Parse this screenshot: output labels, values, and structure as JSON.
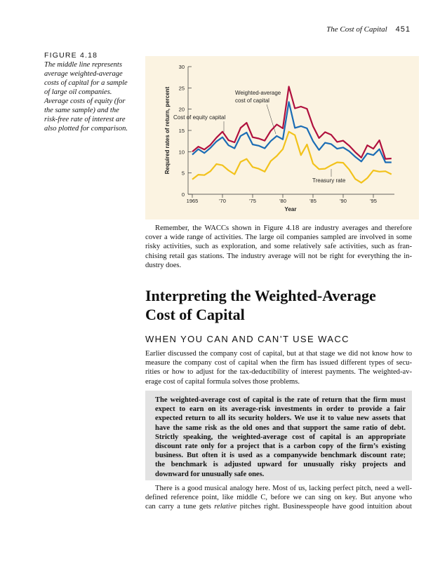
{
  "running_head": {
    "title": "The Cost of Capital",
    "page": "451"
  },
  "caption": {
    "label": "FIGURE 4.18",
    "lines": [
      "The middle line represents",
      "average weighted-average",
      "costs of capital for a sample",
      "of large oil companies.",
      "Average costs of equity (for",
      "the same sample) and the",
      "risk-free rate of interest are",
      "also plotted for comparison."
    ]
  },
  "chart_data": {
    "type": "line",
    "xlabel": "Year",
    "ylabel": "Required rates of return, percent",
    "x": [
      1965,
      1966,
      1967,
      1968,
      1969,
      1970,
      1971,
      1972,
      1973,
      1974,
      1975,
      1976,
      1977,
      1978,
      1979,
      1980,
      1981,
      1982,
      1983,
      1984,
      1985,
      1986,
      1987,
      1988,
      1989,
      1990,
      1991,
      1992,
      1993,
      1994,
      1995,
      1996,
      1997,
      1998
    ],
    "xticks": [
      1965,
      1970,
      1975,
      1980,
      1985,
      1990,
      1995
    ],
    "xtick_labels": [
      "1965",
      "'70",
      "'75",
      "'80",
      "'85",
      "'90",
      "'95"
    ],
    "ylim": [
      0,
      30
    ],
    "yticks": [
      "0",
      "5",
      "10",
      "15",
      "20",
      "25",
      "30"
    ],
    "grid": false,
    "series": [
      {
        "name": "Cost of equity capital",
        "color": "#b0103e",
        "values": [
          10,
          11.2,
          10.5,
          11.6,
          13.3,
          14.7,
          12.7,
          12.2,
          15.6,
          16.8,
          13.4,
          13.1,
          12.6,
          14.9,
          16.4,
          15.5,
          25.3,
          20.2,
          20.6,
          20.1,
          16,
          13.2,
          14.6,
          14,
          12.3,
          12.6,
          11.4,
          9.9,
          8.6,
          11.5,
          10.7,
          12.7,
          8.3,
          8.4
        ]
      },
      {
        "name": "Weighted-average cost of capital",
        "color": "#1b6db5",
        "values": [
          9.3,
          10.6,
          9.7,
          10.9,
          12.4,
          13.4,
          11.5,
          10.8,
          13.7,
          14.5,
          11.7,
          11.4,
          10.8,
          12.5,
          13.7,
          12.9,
          21.7,
          15.6,
          16,
          15.5,
          12.5,
          10.4,
          12.1,
          11.8,
          10.7,
          11,
          10.1,
          8.8,
          7.7,
          9.6,
          9.2,
          10.6,
          7.5,
          7.5
        ]
      },
      {
        "name": "Treasury rate",
        "color": "#f2c21b",
        "values": [
          3.5,
          4.6,
          4.5,
          5.4,
          7.1,
          6.8,
          5.6,
          4.7,
          7.6,
          8.3,
          6.4,
          6,
          5.3,
          7.8,
          9,
          10.6,
          14.7,
          13.9,
          9.2,
          11.7,
          7.2,
          5.9,
          6,
          6.8,
          7.5,
          7.4,
          5.8,
          3.6,
          2.7,
          3.8,
          5.6,
          5.3,
          5.4,
          4.7
        ]
      }
    ],
    "annotations": {
      "equity": "Cost of equity capital",
      "wacc_1": "Weighted-average",
      "wacc_2": "cost of capital",
      "treasury": "Treasury rate"
    }
  },
  "para1": [
    "Remember, the WACCs shown in Figure 4.18 are industry averages and therefore",
    "cover a wide range of activities. The large oil companies sampled are involved in some",
    "risky activities, such as exploration, and some relatively safe activities, such as fran-",
    "chising retail gas stations. The industry average will not be right for everything the in-",
    "dustry does."
  ],
  "heading": [
    "Interpreting the Weighted-Average",
    "Cost of Capital"
  ],
  "subheading": "WHEN YOU CAN AND CAN’T USE WACC",
  "para2": [
    "Earlier discussed the company cost of capital, but at that stage we did not know how to",
    "measure the company cost of capital when the firm has issued different types of secu-",
    "rities or how to adjust for the tax-deductibility of interest payments. The weighted-av-",
    "erage cost of capital formula solves those problems."
  ],
  "box": [
    "The weighted-average cost of capital is the rate of return that the firm must",
    "expect to earn on its average-risk investments in order to provide a fair",
    "expected return to all its security holders. We use it to value new assets that",
    "have the same risk as the old ones and that support the same ratio of debt.",
    "Strictly speaking, the weighted-average cost of capital is an appropriate",
    "discount rate only for a project that is a carbon copy of the firm’s existing",
    "business. But often it is used as a companywide benchmark discount rate;",
    "the benchmark is adjusted upward for unusually risky projects and",
    "downward for unusually safe ones."
  ],
  "para3": {
    "l1": "There is a good musical analogy here. Most of us, lacking perfect pitch, need a well-",
    "l2": "defined reference point, like middle C, before we can sing on key. But anyone who",
    "l3_a": "can carry a tune gets ",
    "l3_em": "relative",
    "l3_b": " pitches right. Businesspeople have good intuition about"
  }
}
